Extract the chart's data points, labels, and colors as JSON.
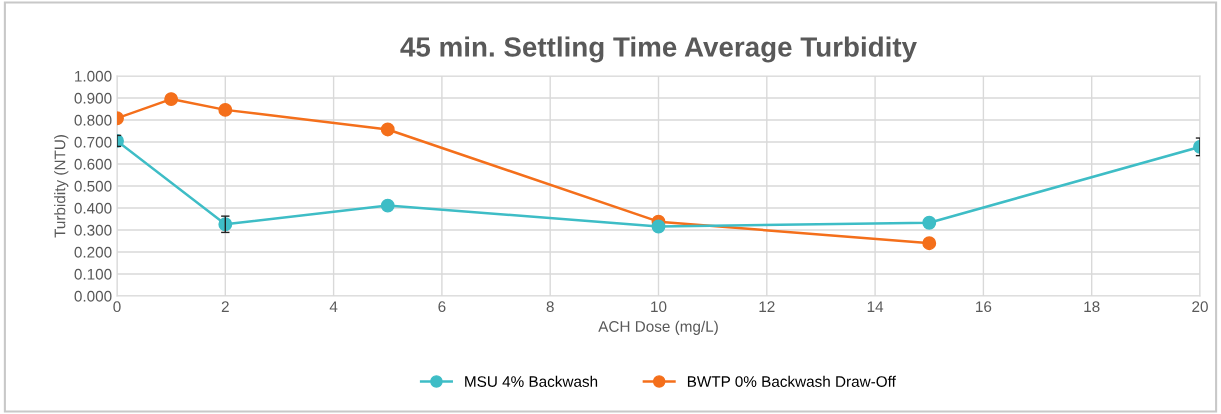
{
  "chart_data": {
    "type": "line",
    "title": "45 min. Settling Time Average Turbidity",
    "xlabel": "ACH Dose (mg/L)",
    "ylabel": "Turbidity (NTU)",
    "series": [
      {
        "name": "MSU 4% Backwash",
        "color": "#3ebdc6",
        "x": [
          0,
          2,
          5,
          10,
          15,
          20
        ],
        "values": [
          0.705,
          0.326,
          0.411,
          0.316,
          0.333,
          0.678
        ],
        "errors": [
          0.025,
          0.037,
          null,
          null,
          null,
          0.04
        ]
      },
      {
        "name": "BWTP 0% Backwash Draw-Off",
        "color": "#f46f1b",
        "x": [
          0,
          1,
          2,
          5,
          10,
          15
        ],
        "values": [
          0.808,
          0.895,
          0.846,
          0.757,
          0.338,
          0.24
        ]
      }
    ],
    "xlim": [
      0,
      20
    ],
    "xticks": [
      0,
      2,
      4,
      6,
      8,
      10,
      12,
      14,
      16,
      18,
      20
    ],
    "ylim": [
      0,
      1
    ],
    "yticks": [
      {
        "value": 0,
        "label": "0.000"
      },
      {
        "value": 0.1,
        "label": "0.100"
      },
      {
        "value": 0.2,
        "label": "0.200"
      },
      {
        "value": 0.3,
        "label": "0.300"
      },
      {
        "value": 0.4,
        "label": "0.400"
      },
      {
        "value": 0.5,
        "label": "0.500"
      },
      {
        "value": 0.6,
        "label": "0.600"
      },
      {
        "value": 0.7,
        "label": "0.700"
      },
      {
        "value": 0.8,
        "label": "0.800"
      },
      {
        "value": 0.9,
        "label": "0.900"
      },
      {
        "value": 1,
        "label": "1.000"
      }
    ],
    "grid": true,
    "legend": "bottom",
    "marker": "circle",
    "line_style": "solid"
  }
}
